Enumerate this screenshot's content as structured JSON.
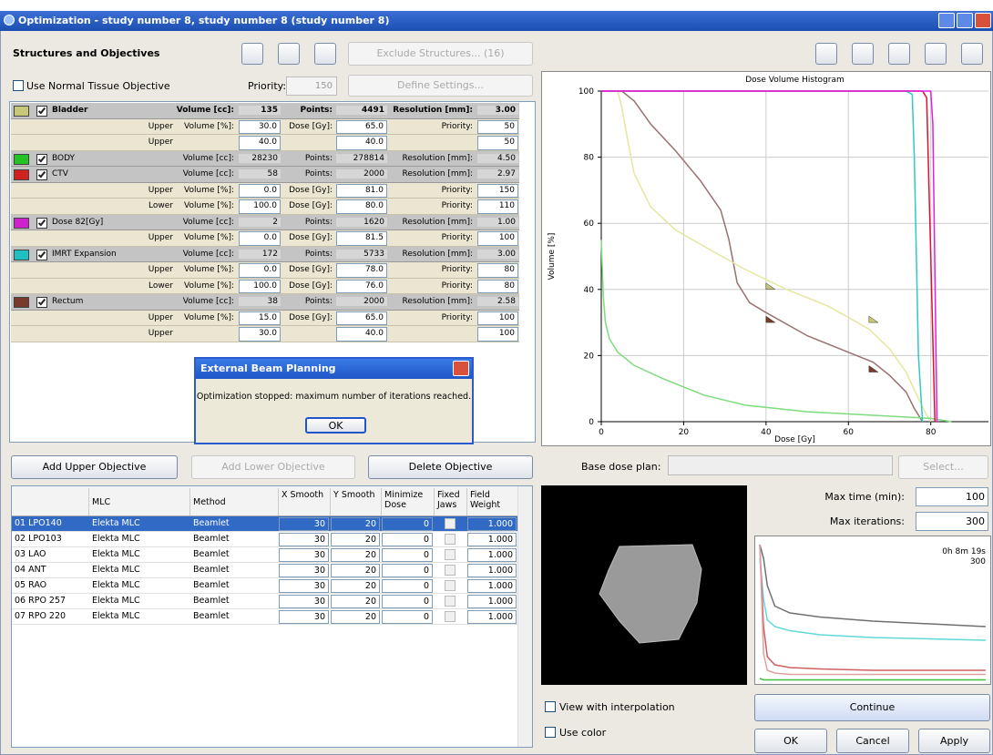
{
  "window": {
    "title": "Optimization - study number 8, study number 8 (study number 8)"
  },
  "toolbar": {
    "section_title": "Structures and Objectives",
    "exclude_button": "Exclude Structures... (16)"
  },
  "normal_tissue": {
    "label": "Use Normal Tissue Objective",
    "priority_label": "Priority:",
    "priority": "150",
    "define_button": "Define Settings..."
  },
  "structures": [
    {
      "name": "Bladder",
      "color": "#c8c878",
      "volume_label": "Volume [cc]:",
      "volume": "135",
      "points_label": "Points:",
      "points": "4491",
      "resolution_label": "Resolution [mm]:",
      "resolution": "3.00",
      "objectives": [
        {
          "type": "Upper",
          "volume_label": "Volume [%]:",
          "volume": "30.0",
          "dose_label": "Dose [Gy]:",
          "dose": "65.0",
          "priority_label": "Priority:",
          "priority": "50"
        },
        {
          "type": "Upper",
          "volume": "40.0",
          "dose": "40.0",
          "priority": "50"
        }
      ]
    },
    {
      "name": "BODY",
      "color": "#22c322",
      "volume_label": "Volume [cc]:",
      "volume": "28230",
      "points_label": "Points:",
      "points": "278814",
      "resolution_label": "Resolution [mm]:",
      "resolution": "4.50",
      "objectives": []
    },
    {
      "name": "CTV",
      "color": "#d02020",
      "volume_label": "Volume [cc]:",
      "volume": "58",
      "points_label": "Points:",
      "points": "2000",
      "resolution_label": "Resolution [mm]:",
      "resolution": "2.97",
      "objectives": [
        {
          "type": "Upper",
          "volume_label": "Volume [%]:",
          "volume": "0.0",
          "dose_label": "Dose [Gy]:",
          "dose": "81.0",
          "priority_label": "Priority:",
          "priority": "150"
        },
        {
          "type": "Lower",
          "volume_label": "Volume [%]:",
          "volume": "100.0",
          "dose_label": "Dose [Gy]:",
          "dose": "80.0",
          "priority_label": "Priority:",
          "priority": "110"
        }
      ]
    },
    {
      "name": "Dose 82[Gy]",
      "color": "#d020d0",
      "volume_label": "Volume [cc]:",
      "volume": "2",
      "points_label": "Points:",
      "points": "1620",
      "resolution_label": "Resolution [mm]:",
      "resolution": "1.00",
      "objectives": [
        {
          "type": "Upper",
          "volume_label": "Volume [%]:",
          "volume": "0.0",
          "dose_label": "Dose [Gy]:",
          "dose": "81.5",
          "priority_label": "Priority:",
          "priority": "100"
        }
      ]
    },
    {
      "name": "IMRT Expansion",
      "color": "#20c0c0",
      "volume_label": "Volume [cc]:",
      "volume": "172",
      "points_label": "Points:",
      "points": "5733",
      "resolution_label": "Resolution [mm]:",
      "resolution": "3.00",
      "objectives": [
        {
          "type": "Upper",
          "volume_label": "Volume [%]:",
          "volume": "0.0",
          "dose_label": "Dose [Gy]:",
          "dose": "78.0",
          "priority_label": "Priority:",
          "priority": "80"
        },
        {
          "type": "Lower",
          "volume_label": "Volume [%]:",
          "volume": "100.0",
          "dose_label": "Dose [Gy]:",
          "dose": "76.0",
          "priority_label": "Priority:",
          "priority": "80"
        }
      ]
    },
    {
      "name": "Rectum",
      "color": "#7a3a2a",
      "volume_label": "Volume [cc]:",
      "volume": "38",
      "points_label": "Points:",
      "points": "2000",
      "resolution_label": "Resolution [mm]:",
      "resolution": "2.58",
      "objectives": [
        {
          "type": "Upper",
          "volume_label": "Volume [%]:",
          "volume": "15.0",
          "dose_label": "Dose [Gy]:",
          "dose": "65.0",
          "priority_label": "Priority:",
          "priority": "100"
        },
        {
          "type": "Upper",
          "volume": "30.0",
          "dose": "40.0",
          "priority": "100"
        }
      ]
    }
  ],
  "dialog": {
    "title": "External Beam Planning",
    "message": "Optimization stopped: maximum number of iterations reached.",
    "ok": "OK"
  },
  "objective_buttons": {
    "add_upper": "Add Upper Objective",
    "add_lower": "Add Lower Objective",
    "delete": "Delete Objective"
  },
  "base_dose": {
    "label": "Base dose plan:",
    "select": "Select..."
  },
  "fields": {
    "columns": [
      "MLC",
      "Method",
      "X Smooth",
      "Y Smooth",
      "Minimize Dose",
      "Fixed Jaws",
      "Field Weight"
    ],
    "rows": [
      [
        "01  LPO140",
        "Elekta MLC",
        "Beamlet",
        "30",
        "20",
        "0",
        "1.000"
      ],
      [
        "02  LPO103",
        "Elekta MLC",
        "Beamlet",
        "30",
        "20",
        "0",
        "1.000"
      ],
      [
        "03  LAO",
        "Elekta MLC",
        "Beamlet",
        "30",
        "20",
        "0",
        "1.000"
      ],
      [
        "04  ANT",
        "Elekta MLC",
        "Beamlet",
        "30",
        "20",
        "0",
        "1.000"
      ],
      [
        "05  RAO",
        "Elekta MLC",
        "Beamlet",
        "30",
        "20",
        "0",
        "1.000"
      ],
      [
        "06  RPO 257",
        "Elekta MLC",
        "Beamlet",
        "30",
        "20",
        "0",
        "1.000"
      ],
      [
        "07  RPO 220",
        "Elekta MLC",
        "Beamlet",
        "30",
        "20",
        "0",
        "1.000"
      ]
    ]
  },
  "optimizer": {
    "max_time_label": "Max time (min):",
    "max_time": "100",
    "max_iterations_label": "Max iterations:",
    "max_iterations": "300",
    "view_interpolation": "View with interpolation",
    "use_color": "Use color",
    "continue": "Continue",
    "ok": "OK",
    "cancel": "Cancel",
    "apply": "Apply"
  },
  "chart_data": [
    {
      "type": "line",
      "title": "Dose Volume Histogram",
      "x_label": "Dose [Gy]",
      "y_label": "Volume [%]",
      "xlim": [
        0,
        94
      ],
      "ylim": [
        0,
        100
      ],
      "xticks": [
        0,
        20,
        40,
        60,
        80
      ],
      "yticks": [
        0,
        20,
        40,
        60,
        80,
        100
      ],
      "grid": true,
      "series": [
        {
          "color": "#9a7070",
          "x": [
            5,
            8,
            12,
            18,
            24,
            29,
            31,
            33,
            36,
            40,
            50,
            60,
            66,
            70,
            74,
            76,
            78
          ],
          "values": [
            100,
            97,
            90,
            82,
            73,
            64,
            55,
            42,
            36,
            33,
            26,
            21,
            18,
            14,
            9,
            4,
            0
          ]
        },
        {
          "color": "#e6e6a0",
          "x": [
            4,
            5,
            6,
            8,
            12,
            18,
            25,
            35,
            45,
            55,
            65,
            70,
            74,
            77,
            79,
            80
          ],
          "values": [
            100,
            95,
            88,
            75,
            65,
            58,
            53,
            46,
            40,
            35,
            28,
            22,
            15,
            7,
            2,
            0
          ]
        },
        {
          "color": "#7ddc7d",
          "x": [
            0,
            0.5,
            1,
            2,
            4,
            8,
            15,
            25,
            35,
            50,
            65,
            80,
            85
          ],
          "values": [
            55,
            38,
            30,
            25,
            21,
            17,
            13,
            8,
            5,
            3,
            2,
            1,
            0
          ]
        },
        {
          "color": "#30c8c8",
          "x": [
            0,
            74,
            75.5,
            76,
            77,
            78
          ],
          "values": [
            100,
            100,
            99,
            80,
            20,
            0
          ]
        },
        {
          "color": "#e01030",
          "x": [
            0,
            78,
            79,
            80,
            81
          ],
          "values": [
            100,
            100,
            98,
            50,
            0
          ]
        },
        {
          "color": "#e020e0",
          "x": [
            0,
            80,
            80.5,
            81.5
          ],
          "values": [
            100,
            100,
            90,
            0
          ]
        }
      ]
    },
    {
      "type": "line",
      "annotations": [
        "0h 8m 19s",
        "300"
      ],
      "xlim": [
        0,
        300
      ],
      "ylim": [
        0,
        100
      ],
      "series": [
        {
          "color": "#707070",
          "x": [
            0,
            5,
            10,
            20,
            40,
            80,
            150,
            300
          ],
          "values": [
            100,
            90,
            70,
            55,
            50,
            47,
            44,
            40
          ]
        },
        {
          "color": "#60d8d8",
          "x": [
            0,
            5,
            10,
            20,
            40,
            80,
            150,
            300
          ],
          "values": [
            90,
            60,
            45,
            40,
            37,
            34,
            32,
            30
          ]
        },
        {
          "color": "#d06060",
          "x": [
            0,
            5,
            10,
            20,
            40,
            80,
            150,
            300
          ],
          "values": [
            100,
            40,
            18,
            12,
            10,
            9,
            8,
            8
          ]
        },
        {
          "color": "#e0a0a0",
          "x": [
            0,
            5,
            10,
            20,
            40,
            80,
            150,
            300
          ],
          "values": [
            100,
            20,
            8,
            6,
            5,
            5,
            5,
            5
          ]
        },
        {
          "color": "#40c040",
          "x": [
            0,
            5,
            10,
            20,
            40,
            80,
            150,
            300
          ],
          "values": [
            2,
            1,
            1,
            1,
            1,
            1,
            1,
            1
          ]
        }
      ]
    }
  ]
}
